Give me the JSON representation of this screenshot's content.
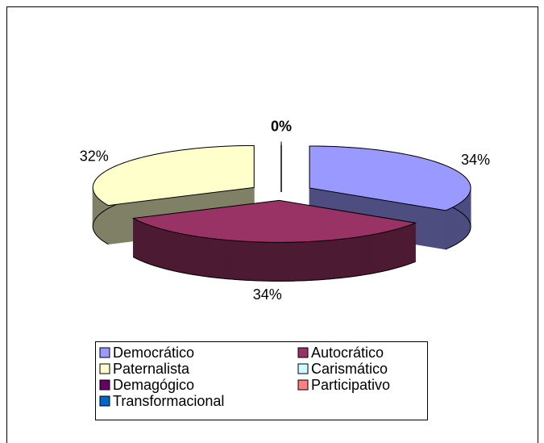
{
  "chart_data": {
    "type": "pie3d",
    "categories": [
      "Democrático",
      "Autocrático",
      "Paternalista",
      "Carismático",
      "Demagógico",
      "Participativo",
      "Transformacional"
    ],
    "values": [
      34,
      34,
      32,
      0,
      0,
      0,
      0
    ],
    "value_labels": [
      "34%",
      "34%",
      "32%",
      "0%",
      null,
      null,
      null
    ],
    "colors": [
      "#9999ff",
      "#993366",
      "#ffffcc",
      "#ccffff",
      "#660066",
      "#ff8080",
      "#0066cc"
    ],
    "exploded": true,
    "legend": "bottom"
  }
}
